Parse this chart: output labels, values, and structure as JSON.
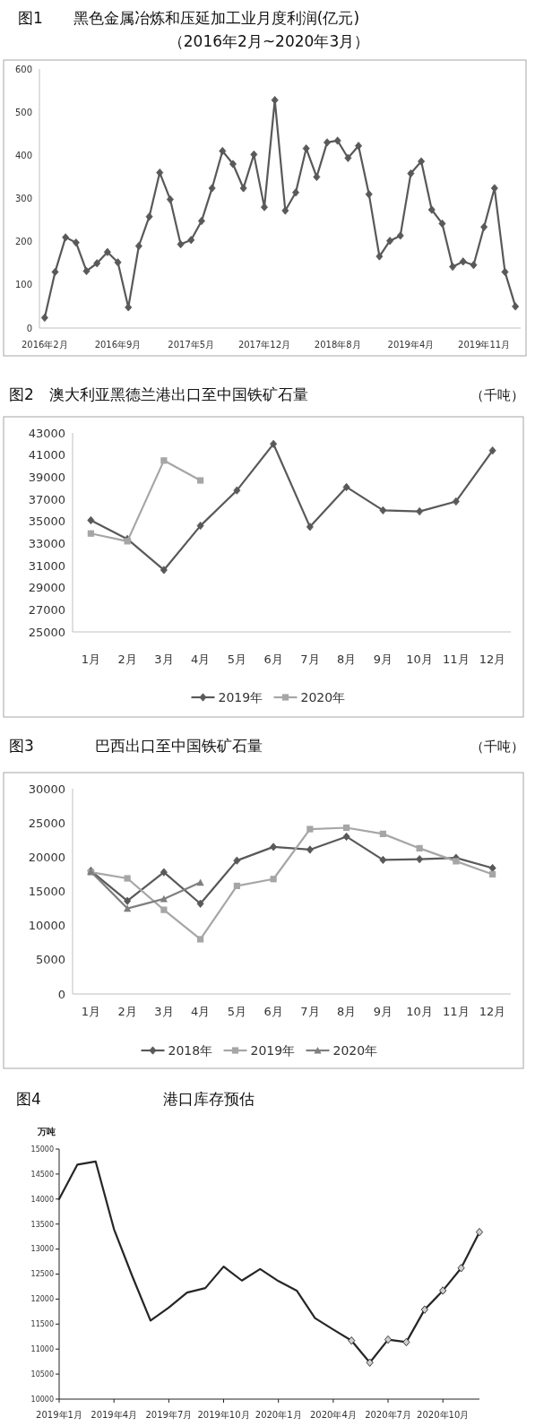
{
  "chart_data": [
    {
      "type": "line",
      "title": "图1　　黑色金属冶炼和压延加工业月度利润(亿元)",
      "subtitle": "（2016年2月~2020年3月）",
      "categories": [
        "2016年2月",
        null,
        null,
        null,
        null,
        null,
        null,
        "2016年9月",
        null,
        null,
        null,
        null,
        null,
        null,
        "2017年5月",
        null,
        null,
        null,
        null,
        null,
        null,
        "2017年12月",
        null,
        null,
        null,
        null,
        null,
        null,
        "2018年8月",
        null,
        null,
        null,
        null,
        null,
        null,
        "2019年4月",
        null,
        null,
        null,
        null,
        null,
        null,
        "2019年11月",
        null,
        null,
        null
      ],
      "series": [
        {
          "color": "#595959",
          "values": [
            24,
            130,
            210,
            198,
            132,
            150,
            176,
            152,
            48,
            190,
            258,
            360,
            298,
            194,
            204,
            248,
            324,
            410,
            380,
            324,
            402,
            280,
            528,
            272,
            314,
            416,
            350,
            430,
            434,
            394,
            422,
            310,
            166,
            202,
            214,
            358,
            386,
            274,
            242,
            142,
            154,
            146,
            234,
            324,
            130,
            50
          ]
        }
      ],
      "marker": "diamond",
      "ylim": [
        0,
        600
      ],
      "yticks": [
        0,
        100,
        200,
        300,
        400,
        500,
        600
      ],
      "grid": false,
      "legend": false
    },
    {
      "type": "line",
      "title": "图2　澳大利亚黑德兰港出口至中国铁矿石量",
      "ylabel": "（千吨）",
      "categories": [
        "1月",
        "2月",
        "3月",
        "4月",
        "5月",
        "6月",
        "7月",
        "8月",
        "9月",
        "10月",
        "11月",
        "12月"
      ],
      "series": [
        {
          "name": "2019年",
          "color": "#595959",
          "marker": "diamond",
          "values": [
            35100,
            33400,
            30600,
            34600,
            37800,
            42000,
            34500,
            38100,
            36000,
            35900,
            36800,
            41400
          ]
        },
        {
          "name": "2020年",
          "color": "#a6a6a6",
          "marker": "square",
          "values": [
            33900,
            33200,
            40500,
            38700,
            null,
            null,
            null,
            null,
            null,
            null,
            null,
            null
          ]
        }
      ],
      "ylim": [
        25000,
        43000
      ],
      "yticks": [
        25000,
        27000,
        29000,
        31000,
        33000,
        35000,
        37000,
        39000,
        41000,
        43000
      ],
      "grid": false,
      "legend": "bottom"
    },
    {
      "type": "line",
      "title": "图3　　　　巴西出口至中国铁矿石量",
      "ylabel": "（千吨）",
      "categories": [
        "1月",
        "2月",
        "3月",
        "4月",
        "5月",
        "6月",
        "7月",
        "8月",
        "9月",
        "10月",
        "11月",
        "12月"
      ],
      "series": [
        {
          "name": "2018年",
          "color": "#595959",
          "marker": "diamond",
          "values": [
            18000,
            13600,
            17800,
            13200,
            19500,
            21500,
            21100,
            23000,
            19600,
            19700,
            19900,
            18400
          ]
        },
        {
          "name": "2019年",
          "color": "#a6a6a6",
          "marker": "square",
          "values": [
            17800,
            16900,
            12300,
            8000,
            15800,
            16800,
            24100,
            24300,
            23400,
            21300,
            19400,
            17500
          ]
        },
        {
          "name": "2020年",
          "color": "#7f7f7f",
          "marker": "triangle",
          "values": [
            17900,
            12500,
            13900,
            16300,
            null,
            null,
            null,
            null,
            null,
            null,
            null,
            null
          ]
        }
      ],
      "ylim": [
        0,
        30000
      ],
      "yticks": [
        0,
        5000,
        10000,
        15000,
        20000,
        25000,
        30000
      ],
      "grid": false,
      "legend": "bottom"
    },
    {
      "type": "line",
      "title": "图4　　　　　　　　港口库存预估",
      "ylabel": "万吨",
      "x": [
        "2019-01",
        "2019-02",
        "2019-03",
        "2019-04",
        "2019-05",
        "2019-06",
        "2019-07",
        "2019-08",
        "2019-09",
        "2019-10",
        "2019-11",
        "2019-12",
        "2020-01",
        "2020-02",
        "2020-03",
        "2020-04",
        "2020-05",
        "2020-06",
        "2020-07",
        "2020-08",
        "2020-09",
        "2020-10",
        "2020-11",
        "2020-12"
      ],
      "series": [
        {
          "color": "#262626",
          "marker": "none",
          "values": [
            14000,
            14690,
            14750,
            13400,
            12460,
            11570,
            11830,
            12130,
            12220,
            12650,
            12370,
            12600,
            12360,
            12170,
            11620,
            11390,
            11170,
            null,
            null,
            null,
            null,
            null,
            null,
            null
          ]
        },
        {
          "color": "#262626",
          "marker": "diamond",
          "values": [
            null,
            null,
            null,
            null,
            null,
            null,
            null,
            null,
            null,
            null,
            null,
            null,
            null,
            null,
            null,
            null,
            11170,
            10730,
            11190,
            11140,
            11790,
            12170,
            12620,
            13340
          ]
        }
      ],
      "xlim": [
        "2019-01",
        "2020-12"
      ],
      "xticks": [
        {
          "value": "2019-01",
          "label": "2019年1月"
        },
        {
          "value": "2019-04",
          "label": "2019年4月"
        },
        {
          "value": "2019-07",
          "label": "2019年7月"
        },
        {
          "value": "2019-10",
          "label": "2019年10月"
        },
        {
          "value": "2020-01",
          "label": "2020年1月"
        },
        {
          "value": "2020-04",
          "label": "2020年4月"
        },
        {
          "value": "2020-07",
          "label": "2020年7月"
        },
        {
          "value": "2020-10",
          "label": "2020年10月"
        }
      ],
      "ylim": [
        10000,
        15000
      ],
      "yticks": [
        10000,
        10500,
        11000,
        11500,
        12000,
        12500,
        13000,
        13500,
        14000,
        14500,
        15000
      ],
      "grid": false,
      "legend": false
    }
  ]
}
